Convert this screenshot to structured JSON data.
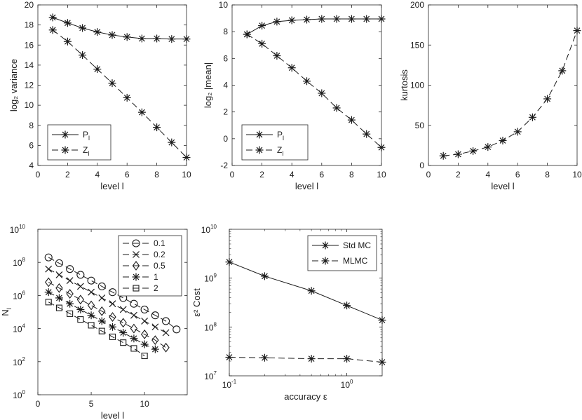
{
  "chart_data": [
    {
      "type": "line",
      "id": "variance",
      "xlabel": "level l",
      "ylabel": "log₂ variance",
      "xlim": [
        0,
        10
      ],
      "ylim": [
        4,
        20
      ],
      "xticks": [
        0,
        2,
        4,
        6,
        8,
        10
      ],
      "yticks": [
        4,
        6,
        8,
        10,
        12,
        14,
        16,
        18,
        20
      ],
      "yscale": "linear",
      "xscale": "linear",
      "legend": "bottom-left",
      "series": [
        {
          "name": "P_l",
          "label_main": "P",
          "label_sub": "l",
          "style": "solid",
          "marker": "asterisk",
          "x": [
            1,
            2,
            3,
            4,
            5,
            6,
            7,
            8,
            9,
            10
          ],
          "y": [
            18.75,
            18.2,
            17.7,
            17.3,
            17.0,
            16.8,
            16.65,
            16.65,
            16.6,
            16.6
          ]
        },
        {
          "name": "Z_l",
          "label_main": "Z",
          "label_sub": "l",
          "style": "dashed",
          "marker": "asterisk",
          "x": [
            1,
            2,
            3,
            4,
            5,
            6,
            7,
            8,
            9,
            10
          ],
          "y": [
            17.5,
            16.35,
            15.0,
            13.6,
            12.2,
            10.75,
            9.3,
            7.8,
            6.3,
            4.8
          ]
        }
      ]
    },
    {
      "type": "line",
      "id": "mean",
      "xlabel": "level l",
      "ylabel": "log₂ |mean|",
      "xlim": [
        0,
        10
      ],
      "ylim": [
        -2,
        10
      ],
      "xticks": [
        0,
        2,
        4,
        6,
        8,
        10
      ],
      "yticks": [
        -2,
        0,
        2,
        4,
        6,
        8,
        10
      ],
      "yscale": "linear",
      "xscale": "linear",
      "legend": "bottom-left",
      "series": [
        {
          "name": "P_l",
          "label_main": "P",
          "label_sub": "l",
          "style": "solid",
          "marker": "asterisk",
          "x": [
            1,
            2,
            3,
            4,
            5,
            6,
            7,
            8,
            9,
            10
          ],
          "y": [
            7.8,
            8.45,
            8.75,
            8.85,
            8.9,
            8.95,
            8.95,
            8.95,
            8.95,
            8.95
          ]
        },
        {
          "name": "Z_l",
          "label_main": "Z",
          "label_sub": "l",
          "style": "dashed",
          "marker": "asterisk",
          "x": [
            1,
            2,
            3,
            4,
            5,
            6,
            7,
            8,
            9,
            10
          ],
          "y": [
            7.8,
            7.1,
            6.2,
            5.3,
            4.3,
            3.4,
            2.3,
            1.4,
            0.35,
            -0.65
          ]
        }
      ]
    },
    {
      "type": "line",
      "id": "kurtosis",
      "xlabel": "level l",
      "ylabel": "kurtosis",
      "xlim": [
        0,
        10
      ],
      "ylim": [
        0,
        200
      ],
      "xticks": [
        0,
        2,
        4,
        6,
        8,
        10
      ],
      "yticks": [
        0,
        50,
        100,
        150,
        200
      ],
      "yscale": "linear",
      "xscale": "linear",
      "legend": "none",
      "series": [
        {
          "name": "kurtosis",
          "style": "dashed",
          "marker": "asterisk",
          "x": [
            1,
            2,
            3,
            4,
            5,
            6,
            7,
            8,
            9,
            10
          ],
          "y": [
            12,
            14,
            18,
            23,
            31,
            42,
            60,
            83,
            118,
            168
          ]
        }
      ]
    },
    {
      "type": "line",
      "id": "samples",
      "xlabel": "level l",
      "ylabel": "N",
      "ylabel_sub": "l",
      "xlim": [
        0,
        14
      ],
      "ylim_exp": [
        0,
        10
      ],
      "xticks": [
        0,
        5,
        10
      ],
      "yticks_exp": [
        0,
        2,
        4,
        6,
        8,
        10
      ],
      "yscale": "log",
      "xscale": "linear",
      "legend": "top-right",
      "series": [
        {
          "name": "0.1",
          "style": "dashed",
          "marker": "circle",
          "x": [
            1,
            2,
            3,
            4,
            5,
            6,
            7,
            8,
            9,
            10,
            11,
            12,
            13
          ],
          "y_exp": [
            8.3,
            7.95,
            7.6,
            7.25,
            6.9,
            6.55,
            6.2,
            5.85,
            5.5,
            5.15,
            4.8,
            4.45,
            3.95
          ]
        },
        {
          "name": "0.2",
          "style": "dashed",
          "marker": "cross",
          "x": [
            1,
            2,
            3,
            4,
            5,
            6,
            7,
            8,
            9,
            10,
            11,
            12
          ],
          "y_exp": [
            7.6,
            7.25,
            6.9,
            6.55,
            6.2,
            5.85,
            5.5,
            5.15,
            4.8,
            4.45,
            4.1,
            3.75
          ]
        },
        {
          "name": "0.5",
          "style": "dashed",
          "marker": "diamond",
          "x": [
            1,
            2,
            3,
            4,
            5,
            6,
            7,
            8,
            9,
            10,
            11,
            12
          ],
          "y_exp": [
            6.8,
            6.45,
            6.1,
            5.75,
            5.4,
            5.05,
            4.7,
            4.35,
            4.0,
            3.65,
            3.3,
            2.85
          ]
        },
        {
          "name": "1",
          "style": "dashed",
          "marker": "asterisk",
          "x": [
            1,
            2,
            3,
            4,
            5,
            6,
            7,
            8,
            9,
            10,
            11
          ],
          "y_exp": [
            6.2,
            5.85,
            5.5,
            5.15,
            4.8,
            4.45,
            4.1,
            3.75,
            3.4,
            3.05,
            2.75
          ]
        },
        {
          "name": "2",
          "style": "dashed",
          "marker": "square",
          "x": [
            1,
            2,
            3,
            4,
            5,
            6,
            7,
            8,
            9,
            10
          ],
          "y_exp": [
            5.6,
            5.25,
            4.9,
            4.55,
            4.2,
            3.85,
            3.5,
            3.15,
            2.8,
            2.35
          ]
        }
      ]
    },
    {
      "type": "line",
      "id": "cost",
      "xlabel": "accuracy ε",
      "ylabel": "ε² Cost",
      "xlim_exp": [
        -1,
        0.301
      ],
      "ylim_exp": [
        7,
        10
      ],
      "xticks_exp": [
        -1,
        0
      ],
      "yticks_exp": [
        7,
        8,
        9,
        10
      ],
      "yscale": "log",
      "xscale": "log",
      "legend": "top-right",
      "series": [
        {
          "name": "Std MC",
          "style": "solid",
          "marker": "asterisk",
          "x": [
            0.1,
            0.2,
            0.5,
            1,
            2
          ],
          "y_exp": [
            9.33,
            9.04,
            8.74,
            8.44,
            8.14
          ]
        },
        {
          "name": "MLMC",
          "style": "dashed",
          "marker": "asterisk",
          "x": [
            0.1,
            0.2,
            0.5,
            1,
            2
          ],
          "y_exp": [
            7.38,
            7.37,
            7.35,
            7.35,
            7.28
          ]
        }
      ]
    }
  ]
}
